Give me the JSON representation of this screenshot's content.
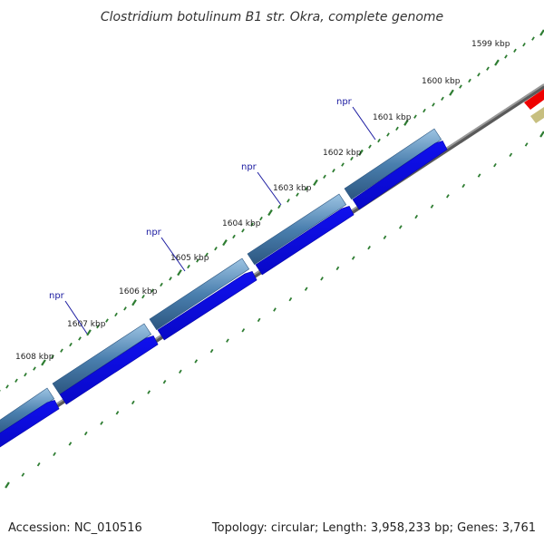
{
  "title": "Clostridium botulinum B1 str. Okra, complete genome",
  "footer": {
    "accession": "Accession: NC_010516",
    "summary": "Topology: circular; Length: 3,958,233 bp; Genes: 3,761"
  },
  "ticks": [
    "1599 kbp",
    "1600 kbp",
    "1601 kbp",
    "1602 kbp",
    "1603 kbp",
    "1604 kbp",
    "1605 kbp",
    "1606 kbp",
    "1607 kbp",
    "1608 kbp"
  ],
  "gene_labels": [
    "npr",
    "npr",
    "npr",
    "npr"
  ],
  "colors": {
    "tick_dots": "#2e7d32",
    "backbone": "#8c8c8c",
    "cds_blue": "#1010ee",
    "gene_steel": "#4a7fae",
    "gene_label": "#1a1aa0",
    "red_feature": "#ee0000",
    "olive_feature": "#c7bf80"
  }
}
